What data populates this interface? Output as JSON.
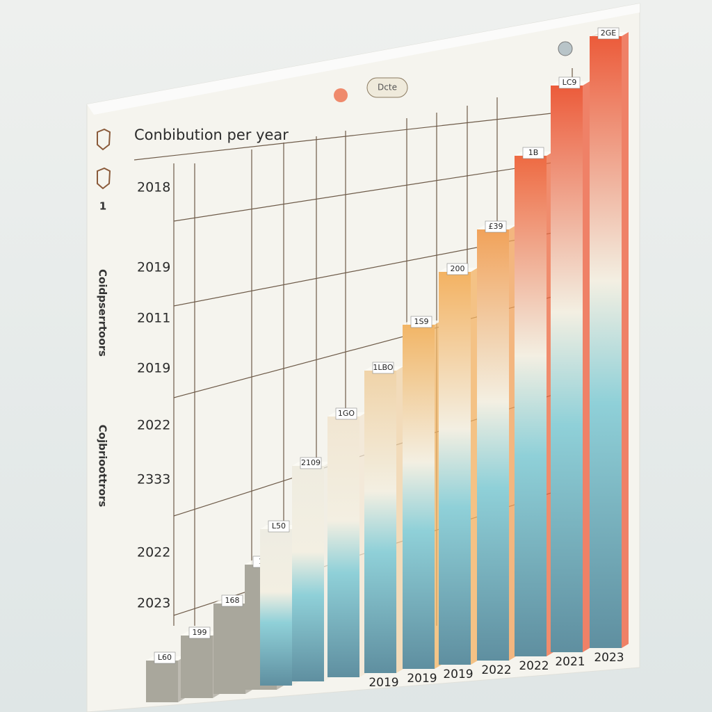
{
  "chart_data": {
    "type": "bar",
    "title": "Conbibution per year",
    "button": "Dcte",
    "side_labels": [
      "1",
      "Coidpserrtoors",
      "Cojbrioottrors"
    ],
    "row_labels": [
      "2018",
      "2019",
      "2011",
      "2019",
      "2022",
      "2333",
      "2022",
      "2023"
    ],
    "categories": [
      null,
      null,
      null,
      null,
      null,
      null,
      null,
      "2019",
      "2019",
      "2019",
      "2022",
      "2022",
      "2021",
      "2023"
    ],
    "values": [
      6,
      9,
      13,
      18,
      22.5,
      31,
      37.5,
      43.5,
      49.5,
      56.5,
      62,
      72,
      81.5,
      88
    ],
    "bar_labels": [
      "L60",
      "199",
      "168",
      "10",
      "L50",
      "2109",
      "1GO",
      "1LBO",
      "1S9",
      "200",
      "£39",
      "1B",
      "LC9",
      "2GE"
    ],
    "colors": [
      "#a9a79c",
      "#a9a79c",
      "#a9a79c",
      "#a9a79c",
      "#eeece2",
      "#efece0",
      "#f1e6d2",
      "#f0d3a8",
      "#f2b566",
      "#f3b262",
      "#f1a25a",
      "#ee6a42",
      "#ec5b3a",
      "#ec5b3a"
    ]
  }
}
